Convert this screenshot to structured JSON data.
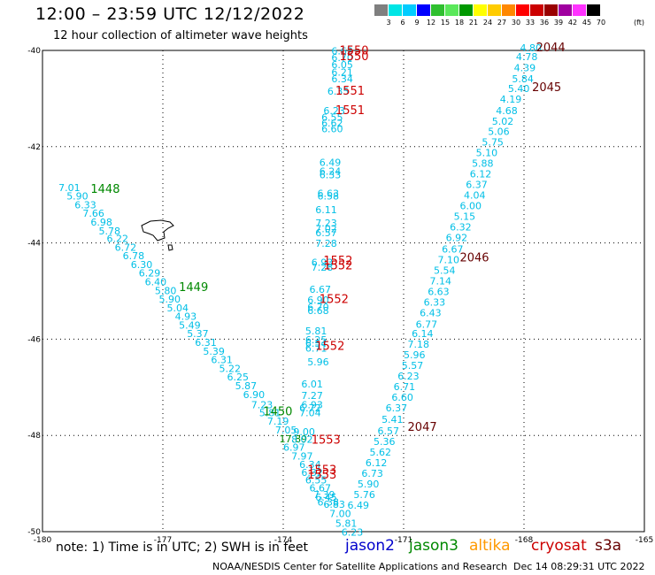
{
  "title": "12:00 – 23:59 UTC 12/12/2022",
  "subtitle": "12 hour collection of altimeter wave heights",
  "scale": {
    "colors": [
      "#7f7f7f",
      "#00e5e5",
      "#00ccff",
      "#0000ff",
      "#2fbf2f",
      "#5ae85a",
      "#009900",
      "#ffff00",
      "#ffcc00",
      "#ff8800",
      "#ff0000",
      "#cc0000",
      "#990000",
      "#a000a0",
      "#ff33ff",
      "#000000"
    ],
    "labels": [
      "3",
      "6",
      "9",
      "12",
      "15",
      "18",
      "21",
      "24",
      "27",
      "30",
      "33",
      "36",
      "39",
      "42",
      "45",
      "70"
    ],
    "units": "(ft)"
  },
  "axes": {
    "lat_ticks": [
      "-40",
      "-42",
      "-44",
      "-46",
      "-48",
      "-50"
    ],
    "lon_ticks": [
      "-180",
      "-177",
      "-174",
      "-171",
      "-168",
      "-165"
    ]
  },
  "map_data": {
    "lon_range": [
      -180,
      -165
    ],
    "lat_range": [
      -50,
      -40
    ],
    "swh_unit": "ft",
    "time_unit": "UTC",
    "satellite_colors": {
      "jason2": "#0000cc",
      "jason3": "#008800",
      "altika": "#ff9900",
      "cryosat": "#cc0000",
      "s3a": "#660000",
      "swh": "#00bfe6"
    },
    "labels": [
      {
        "sat": "jason3",
        "text": "1448",
        "lon": -178.8,
        "lat": -42.96
      },
      {
        "sat": "jason3",
        "text": "1449",
        "lon": -176.6,
        "lat": -45.0
      },
      {
        "sat": "jason3",
        "text": "1450",
        "lon": -174.5,
        "lat": -47.58
      },
      {
        "sat": "cryosat",
        "text": "1550",
        "lon": -172.6,
        "lat": -40.08
      },
      {
        "sat": "cryosat",
        "text": "1550",
        "lon": -172.6,
        "lat": -40.2
      },
      {
        "sat": "cryosat",
        "text": "1551",
        "lon": -172.7,
        "lat": -40.92
      },
      {
        "sat": "cryosat",
        "text": "1551",
        "lon": -172.7,
        "lat": -41.32
      },
      {
        "sat": "cryosat",
        "text": "1552",
        "lon": -173.0,
        "lat": -44.45
      },
      {
        "sat": "cryosat",
        "text": "1552",
        "lon": -173.0,
        "lat": -44.55
      },
      {
        "sat": "cryosat",
        "text": "1552",
        "lon": -173.1,
        "lat": -45.25
      },
      {
        "sat": "cryosat",
        "text": "1552",
        "lon": -173.2,
        "lat": -46.22
      },
      {
        "sat": "cryosat",
        "text": "1553",
        "lon": -173.3,
        "lat": -48.17
      },
      {
        "sat": "cryosat",
        "text": "1553",
        "lon": -173.4,
        "lat": -48.8
      },
      {
        "sat": "cryosat",
        "text": "1553",
        "lon": -173.4,
        "lat": -48.9
      },
      {
        "sat": "s3a",
        "text": "2044",
        "lon": -167.7,
        "lat": -40.02
      },
      {
        "sat": "s3a",
        "text": "2045",
        "lon": -167.8,
        "lat": -40.85
      },
      {
        "sat": "s3a",
        "text": "2046",
        "lon": -169.6,
        "lat": -44.38
      },
      {
        "sat": "s3a",
        "text": "2047",
        "lon": -170.9,
        "lat": -47.9
      }
    ],
    "values": [
      {
        "text": "7.01",
        "lon": -179.6,
        "lat": -42.92
      },
      {
        "text": "5.90",
        "lon": -179.4,
        "lat": -43.1
      },
      {
        "text": "6.33",
        "lon": -179.2,
        "lat": -43.28
      },
      {
        "text": "7.66",
        "lon": -179.0,
        "lat": -43.46
      },
      {
        "text": "6.98",
        "lon": -178.8,
        "lat": -43.64
      },
      {
        "text": "5.78",
        "lon": -178.6,
        "lat": -43.82
      },
      {
        "text": "6.22",
        "lon": -178.4,
        "lat": -43.98
      },
      {
        "text": "6.72",
        "lon": -178.2,
        "lat": -44.16
      },
      {
        "text": "6.78",
        "lon": -178.0,
        "lat": -44.34
      },
      {
        "text": "6.30",
        "lon": -177.8,
        "lat": -44.52
      },
      {
        "text": "6.29",
        "lon": -177.6,
        "lat": -44.7
      },
      {
        "text": "6.40",
        "lon": -177.45,
        "lat": -44.88
      },
      {
        "text": "5.80",
        "lon": -177.2,
        "lat": -45.06
      },
      {
        "text": "5.90",
        "lon": -177.1,
        "lat": -45.24
      },
      {
        "text": "5.04",
        "lon": -176.9,
        "lat": -45.42
      },
      {
        "text": "4.93",
        "lon": -176.7,
        "lat": -45.6
      },
      {
        "text": "5.49",
        "lon": -176.6,
        "lat": -45.78
      },
      {
        "text": "5.37",
        "lon": -176.4,
        "lat": -45.96
      },
      {
        "text": "6.31",
        "lon": -176.2,
        "lat": -46.14
      },
      {
        "text": "5.39",
        "lon": -176.0,
        "lat": -46.32
      },
      {
        "text": "6.31",
        "lon": -175.8,
        "lat": -46.5
      },
      {
        "text": "5.22",
        "lon": -175.6,
        "lat": -46.68
      },
      {
        "text": "6.25",
        "lon": -175.4,
        "lat": -46.86
      },
      {
        "text": "5.87",
        "lon": -175.2,
        "lat": -47.04
      },
      {
        "text": "6.90",
        "lon": -175.0,
        "lat": -47.22
      },
      {
        "text": "7.23",
        "lon": -174.8,
        "lat": -47.44
      },
      {
        "text": "5.81",
        "lon": -174.6,
        "lat": -47.6
      },
      {
        "text": "7.19",
        "lon": -174.4,
        "lat": -47.78
      },
      {
        "text": "7.05",
        "lon": -174.2,
        "lat": -47.96
      },
      {
        "text": "17.89",
        "sat": "jason3",
        "lon": -174.1,
        "lat": -48.14
      },
      {
        "text": "6.97",
        "lon": -174.0,
        "lat": -48.32
      },
      {
        "text": "7.97",
        "lon": -173.8,
        "lat": -48.5
      },
      {
        "text": "6.34",
        "lon": -173.6,
        "lat": -48.68
      },
      {
        "text": "6.32",
        "lon": -173.55,
        "lat": -48.84
      },
      {
        "text": "6.55",
        "lon": -173.45,
        "lat": -49.0
      },
      {
        "text": "6.67",
        "lon": -173.35,
        "lat": -49.16
      },
      {
        "text": "7.39",
        "lon": -173.25,
        "lat": -49.3
      },
      {
        "text": "6.45",
        "lon": -173.2,
        "lat": -49.36
      },
      {
        "text": "6.38",
        "lon": -173.15,
        "lat": -49.46
      },
      {
        "text": "6.83",
        "lon": -173.0,
        "lat": -49.5
      },
      {
        "text": "7.00",
        "lon": -172.85,
        "lat": -49.7
      },
      {
        "text": "5.81",
        "lon": -172.7,
        "lat": -49.9
      },
      {
        "text": "6.23",
        "lon": -172.55,
        "lat": -50.08
      },
      {
        "text": "8.02",
        "lon": -173.8,
        "lat": -48.15
      },
      {
        "text": "9.00",
        "lon": -173.75,
        "lat": -48.0
      },
      {
        "text": "6.62",
        "lon": -172.8,
        "lat": -40.08
      },
      {
        "text": "6.70",
        "lon": -172.8,
        "lat": -40.22
      },
      {
        "text": "6.05",
        "lon": -172.8,
        "lat": -40.37
      },
      {
        "text": "6.21",
        "lon": -172.8,
        "lat": -40.52
      },
      {
        "text": "6.34",
        "lon": -172.8,
        "lat": -40.66
      },
      {
        "text": "6.35",
        "lon": -172.9,
        "lat": -40.92
      },
      {
        "text": "6.23",
        "lon": -173.0,
        "lat": -41.32
      },
      {
        "text": "6.55",
        "lon": -173.05,
        "lat": -41.46
      },
      {
        "text": "6.62",
        "lon": -173.05,
        "lat": -41.58
      },
      {
        "text": "6.60",
        "lon": -173.05,
        "lat": -41.7
      },
      {
        "text": "6.49",
        "lon": -173.1,
        "lat": -42.4
      },
      {
        "text": "6.24",
        "lon": -173.1,
        "lat": -42.58
      },
      {
        "text": "6.33",
        "lon": -173.1,
        "lat": -42.66
      },
      {
        "text": "6.63",
        "lon": -173.15,
        "lat": -43.04
      },
      {
        "text": "6.58",
        "lon": -173.15,
        "lat": -43.1
      },
      {
        "text": "6.11",
        "lon": -173.2,
        "lat": -43.38
      },
      {
        "text": "7.23",
        "lon": -173.2,
        "lat": -43.66
      },
      {
        "text": "7.02",
        "lon": -173.2,
        "lat": -43.78
      },
      {
        "text": "6.57",
        "lon": -173.2,
        "lat": -43.86
      },
      {
        "text": "7.28",
        "lon": -173.2,
        "lat": -44.08
      },
      {
        "text": "6.93",
        "lon": -173.3,
        "lat": -44.48
      },
      {
        "text": "7.28",
        "lon": -173.3,
        "lat": -44.58
      },
      {
        "text": "6.67",
        "lon": -173.35,
        "lat": -45.04
      },
      {
        "text": "6.90",
        "lon": -173.4,
        "lat": -45.26
      },
      {
        "text": "6.70",
        "lon": -173.4,
        "lat": -45.4
      },
      {
        "text": "6.68",
        "lon": -173.4,
        "lat": -45.48
      },
      {
        "text": "5.81",
        "lon": -173.45,
        "lat": -45.9
      },
      {
        "text": "6.25",
        "lon": -173.45,
        "lat": -46.08
      },
      {
        "text": "6.54",
        "lon": -173.45,
        "lat": -46.16
      },
      {
        "text": "6.71",
        "lon": -173.45,
        "lat": -46.26
      },
      {
        "text": "5.96",
        "lon": -173.4,
        "lat": -46.54
      },
      {
        "text": "6.01",
        "lon": -173.55,
        "lat": -47.0
      },
      {
        "text": "7.27",
        "lon": -173.55,
        "lat": -47.24
      },
      {
        "text": "6.93",
        "lon": -173.55,
        "lat": -47.44
      },
      {
        "text": "6.72",
        "lon": -173.6,
        "lat": -47.5
      },
      {
        "text": "7.04",
        "lon": -173.6,
        "lat": -47.6
      },
      {
        "text": "4.80",
        "lon": -168.1,
        "lat": -40.02
      },
      {
        "text": "4.78",
        "lon": -168.2,
        "lat": -40.2
      },
      {
        "text": "4.39",
        "lon": -168.25,
        "lat": -40.43
      },
      {
        "text": "5.84",
        "lon": -168.3,
        "lat": -40.66
      },
      {
        "text": "5.40",
        "lon": -168.4,
        "lat": -40.86
      },
      {
        "text": "4.19",
        "lon": -168.6,
        "lat": -41.08
      },
      {
        "text": "4.68",
        "lon": -168.7,
        "lat": -41.32
      },
      {
        "text": "5.02",
        "lon": -168.8,
        "lat": -41.54
      },
      {
        "text": "5.06",
        "lon": -168.9,
        "lat": -41.76
      },
      {
        "text": "5.75",
        "lon": -169.05,
        "lat": -41.98
      },
      {
        "text": "5.10",
        "lon": -169.2,
        "lat": -42.2
      },
      {
        "text": "5.88",
        "lon": -169.3,
        "lat": -42.42
      },
      {
        "text": "6.12",
        "lon": -169.35,
        "lat": -42.64
      },
      {
        "text": "6.37",
        "lon": -169.45,
        "lat": -42.86
      },
      {
        "text": "4.04",
        "lon": -169.5,
        "lat": -43.08
      },
      {
        "text": "6.00",
        "lon": -169.6,
        "lat": -43.3
      },
      {
        "text": "5.15",
        "lon": -169.75,
        "lat": -43.52
      },
      {
        "text": "6.32",
        "lon": -169.85,
        "lat": -43.74
      },
      {
        "text": "6.92",
        "lon": -169.95,
        "lat": -43.96
      },
      {
        "text": "6.67",
        "lon": -170.05,
        "lat": -44.2
      },
      {
        "text": "7.10",
        "lon": -170.15,
        "lat": -44.42
      },
      {
        "text": "5.54",
        "lon": -170.25,
        "lat": -44.64
      },
      {
        "text": "7.14",
        "lon": -170.35,
        "lat": -44.86
      },
      {
        "text": "6.63",
        "lon": -170.4,
        "lat": -45.08
      },
      {
        "text": "6.33",
        "lon": -170.5,
        "lat": -45.3
      },
      {
        "text": "6.43",
        "lon": -170.6,
        "lat": -45.52
      },
      {
        "text": "6.77",
        "lon": -170.7,
        "lat": -45.76
      },
      {
        "text": "6.14",
        "lon": -170.8,
        "lat": -45.96
      },
      {
        "text": "7.18",
        "lon": -170.9,
        "lat": -46.18
      },
      {
        "text": "5.96",
        "lon": -171.0,
        "lat": -46.4
      },
      {
        "text": "5.57",
        "lon": -171.05,
        "lat": -46.62
      },
      {
        "text": "6.23",
        "lon": -171.15,
        "lat": -46.84
      },
      {
        "text": "6.71",
        "lon": -171.25,
        "lat": -47.06
      },
      {
        "text": "6.60",
        "lon": -171.3,
        "lat": -47.28
      },
      {
        "text": "6.37",
        "lon": -171.45,
        "lat": -47.5
      },
      {
        "text": "5.41",
        "lon": -171.55,
        "lat": -47.74
      },
      {
        "text": "6.57",
        "lon": -171.65,
        "lat": -47.98
      },
      {
        "text": "5.36",
        "lon": -171.75,
        "lat": -48.2
      },
      {
        "text": "5.62",
        "lon": -171.85,
        "lat": -48.42
      },
      {
        "text": "6.12",
        "lon": -171.95,
        "lat": -48.64
      },
      {
        "text": "6.73",
        "lon": -172.05,
        "lat": -48.86
      },
      {
        "text": "5.90",
        "lon": -172.15,
        "lat": -49.08
      },
      {
        "text": "5.76",
        "lon": -172.25,
        "lat": -49.3
      },
      {
        "text": "6.49",
        "lon": -172.4,
        "lat": -49.52
      }
    ]
  },
  "note": "note:  1) Time is in UTC; 2) SWH is in feet",
  "legend": [
    {
      "name": "jason2",
      "color": "#0000cc"
    },
    {
      "name": "jason3",
      "color": "#008800"
    },
    {
      "name": "altika",
      "color": "#ff9900"
    },
    {
      "name": "cryosat",
      "color": "#cc0000"
    },
    {
      "name": "s3a",
      "color": "#660000"
    }
  ],
  "footer": "NOAA/NESDIS Center for Satellite Applications and Research",
  "footer_date": "Dec 14 08:29:31 UTC 2022"
}
